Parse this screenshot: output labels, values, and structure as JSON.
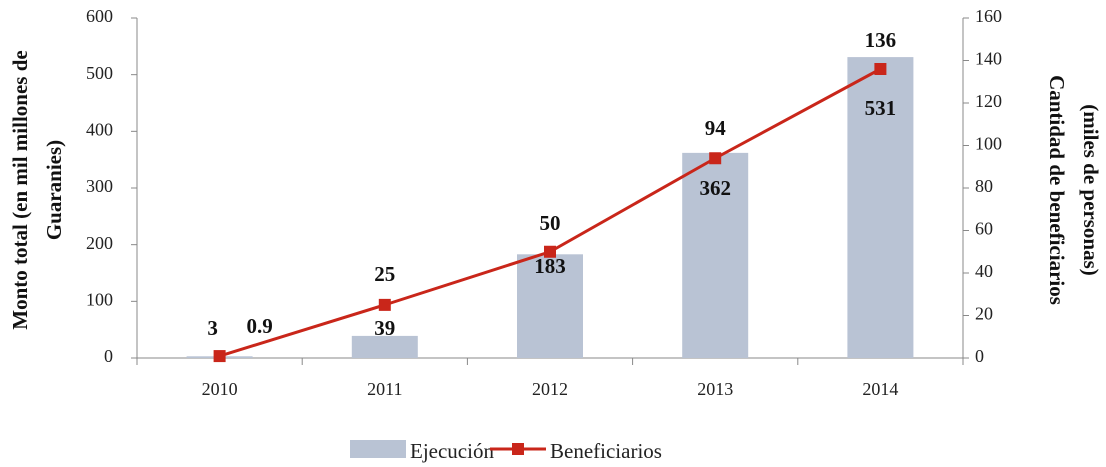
{
  "chart_data": {
    "type": "bar",
    "categories": [
      "2010",
      "2011",
      "2012",
      "2013",
      "2014"
    ],
    "series": [
      {
        "name": "Ejecución",
        "type": "bar",
        "color": "#b9c3d4",
        "values": [
          3,
          39,
          183,
          362,
          531
        ]
      },
      {
        "name": "Beneficiarios",
        "type": "line",
        "axis": "y2",
        "color": "#c9261a",
        "values": [
          0.9,
          25,
          50,
          94,
          136
        ]
      }
    ],
    "ylabel": [
      "Monto total (en mil millones de",
      "Guaranies)"
    ],
    "y2label": [
      "Cantidad de beneficiarios",
      "(miles de personas)"
    ],
    "ylim": [
      0,
      600
    ],
    "yticks": [
      0,
      100,
      200,
      300,
      400,
      500,
      600
    ],
    "y2lim": [
      0,
      160
    ],
    "y2ticks": [
      0,
      20,
      40,
      60,
      80,
      100,
      120,
      140,
      160
    ],
    "grid": false,
    "legend": "bottom"
  }
}
